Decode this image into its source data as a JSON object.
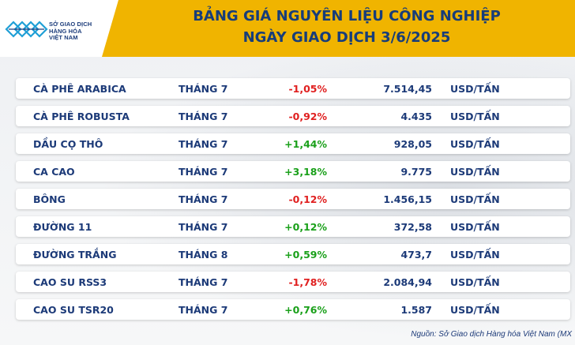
{
  "header": {
    "logo_lines": [
      "SỞ GIAO DỊCH",
      "HÀNG HÓA",
      "VIỆT NAM"
    ],
    "title_line1": "BẢNG GIÁ NGUYÊN LIỆU CÔNG NGHIỆP",
    "title_line2": "NGÀY GIAO DỊCH 3/6/2025"
  },
  "colors": {
    "header_bg": "#f0b400",
    "text_navy": "#1c3a78",
    "negative": "#e02020",
    "positive": "#1aa01a"
  },
  "rows": [
    {
      "name": "CÀ PHÊ ARABICA",
      "month": "THÁNG 7",
      "change": "-1,05%",
      "direction": "down",
      "price": "7.514,45",
      "unit": "USD/TẤN"
    },
    {
      "name": "CÀ PHÊ ROBUSTA",
      "month": "THÁNG 7",
      "change": "-0,92%",
      "direction": "down",
      "price": "4.435",
      "unit": "USD/TẤN"
    },
    {
      "name": "DẦU CỌ THÔ",
      "month": "THÁNG 7",
      "change": "+1,44%",
      "direction": "up",
      "price": "928,05",
      "unit": "USD/TẤN"
    },
    {
      "name": "CA CAO",
      "month": "THÁNG 7",
      "change": "+3,18%",
      "direction": "up",
      "price": "9.775",
      "unit": "USD/TẤN"
    },
    {
      "name": "BÔNG",
      "month": "THÁNG 7",
      "change": "-0,12%",
      "direction": "down",
      "price": "1.456,15",
      "unit": "USD/TẤN"
    },
    {
      "name": "ĐƯỜNG 11",
      "month": "THÁNG 7",
      "change": "+0,12%",
      "direction": "up",
      "price": "372,58",
      "unit": "USD/TẤN"
    },
    {
      "name": "ĐƯỜNG TRẮNG",
      "month": "THÁNG 8",
      "change": "+0,59%",
      "direction": "up",
      "price": "473,7",
      "unit": "USD/TẤN"
    },
    {
      "name": "CAO SU RSS3",
      "month": "THÁNG 7",
      "change": "-1,78%",
      "direction": "down",
      "price": "2.084,94",
      "unit": "USD/TẤN"
    },
    {
      "name": "CAO SU TSR20",
      "month": "THÁNG 7",
      "change": "+0,76%",
      "direction": "up",
      "price": "1.587",
      "unit": "USD/TẤN"
    }
  ],
  "source": "Nguồn: Sở Giao dịch Hàng hóa Việt Nam (MX"
}
